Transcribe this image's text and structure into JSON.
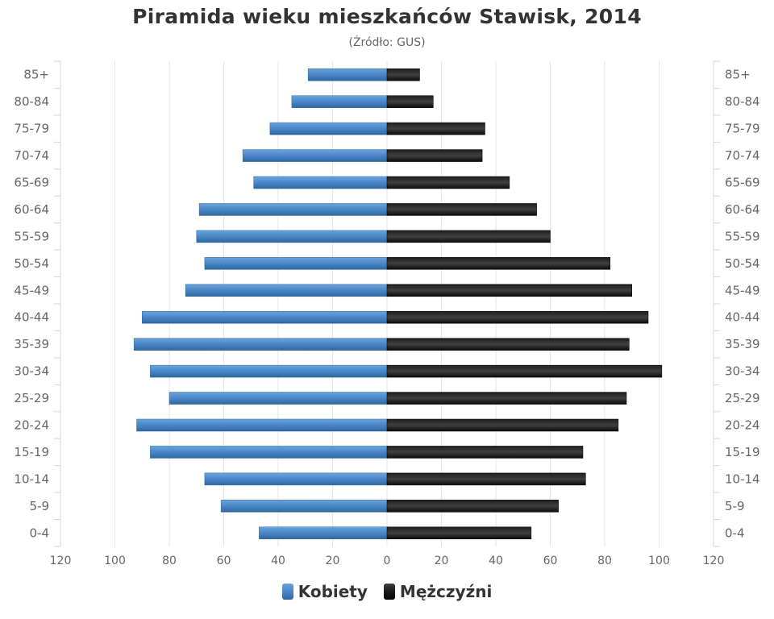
{
  "colors": {
    "women": "#4a86c8",
    "men": "#1a1a1a",
    "grid": "#e6e6e6",
    "axis_line": "#ccd6eb",
    "tick_label": "#666666"
  },
  "chart_data": {
    "type": "bar",
    "orientation": "horizontal",
    "layout": "population-pyramid",
    "title": "Piramida wieku mieszkańców Stawisk, 2014",
    "subtitle": "(Źródło: GUS)",
    "categories": [
      "0-4",
      "5-9",
      "10-14",
      "15-19",
      "20-24",
      "25-29",
      "30-34",
      "35-39",
      "40-44",
      "45-49",
      "50-54",
      "55-59",
      "60-64",
      "65-69",
      "70-74",
      "75-79",
      "80-84",
      "85+"
    ],
    "series": [
      {
        "name": "Kobiety",
        "side": "left",
        "color": "#4a86c8",
        "values": [
          47,
          61,
          67,
          87,
          92,
          80,
          87,
          93,
          90,
          74,
          67,
          70,
          69,
          49,
          53,
          43,
          35,
          29
        ]
      },
      {
        "name": "Mężczyźni",
        "side": "right",
        "color": "#1a1a1a",
        "values": [
          53,
          63,
          73,
          72,
          85,
          88,
          101,
          89,
          96,
          90,
          82,
          60,
          55,
          45,
          35,
          36,
          17,
          12
        ]
      }
    ],
    "xlim": [
      -120,
      120
    ],
    "x_tick_labels": [
      "120",
      "100",
      "80",
      "60",
      "40",
      "20",
      "0",
      "20",
      "40",
      "60",
      "80",
      "100",
      "120"
    ],
    "grid": true,
    "legend_position": "bottom-center"
  }
}
